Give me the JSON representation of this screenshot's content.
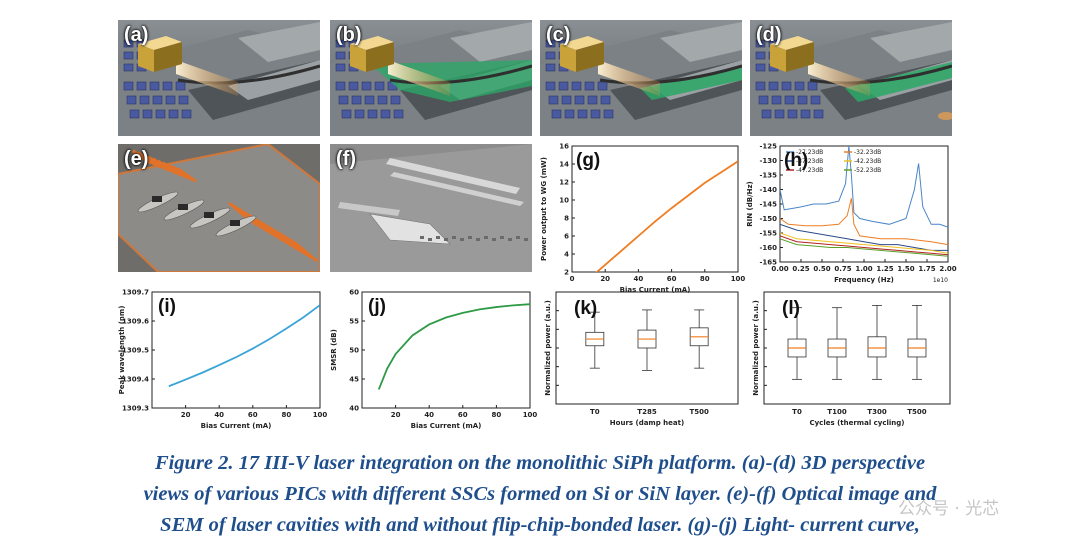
{
  "panels": {
    "a": {
      "label": "(a)"
    },
    "b": {
      "label": "(b)"
    },
    "c": {
      "label": "(c)"
    },
    "d": {
      "label": "(d)"
    },
    "e": {
      "label": "(e)"
    },
    "f": {
      "label": "(f)"
    }
  },
  "chart_data": [
    {
      "id": "g",
      "label": "(g)",
      "type": "line",
      "xlabel": "Bias Current (mA)",
      "ylabel": "Power output to WG (mW)",
      "xlim": [
        0,
        100
      ],
      "ylim": [
        2,
        16
      ],
      "xticks": [
        0,
        20,
        40,
        60,
        80,
        100
      ],
      "yticks": [
        2,
        4,
        6,
        8,
        10,
        12,
        14,
        16
      ],
      "series": [
        {
          "color": "#ef7d22",
          "x": [
            10,
            20,
            30,
            40,
            50,
            60,
            70,
            80,
            90,
            100
          ],
          "y": [
            1.2,
            2.8,
            4.4,
            6.0,
            7.6,
            9.1,
            10.5,
            11.9,
            13.1,
            14.3
          ]
        }
      ]
    },
    {
      "id": "h",
      "label": "(h)",
      "type": "line",
      "xlabel": "Frequency (Hz)",
      "ylabel": "RIN (dB/Hz)",
      "xunit": "1e10",
      "xlim": [
        0,
        2.0
      ],
      "ylim": [
        -165,
        -125
      ],
      "xticks": [
        0.0,
        0.25,
        0.5,
        0.75,
        1.0,
        1.25,
        1.5,
        1.75,
        2.0
      ],
      "xticklabels": [
        "0.00",
        "0.25",
        "0.50",
        "0.75",
        "1.00",
        "1.25",
        "1.50",
        "1.75",
        "2.00"
      ],
      "yticks": [
        -125,
        -130,
        -135,
        -140,
        -145,
        -150,
        -155,
        -160,
        -165
      ],
      "legend": "top",
      "series": [
        {
          "name": "-27.23dB",
          "color": "#4a86c8",
          "x": [
            0.0,
            0.05,
            0.15,
            0.25,
            0.4,
            0.55,
            0.7,
            0.78,
            0.82,
            0.85,
            0.88,
            0.95,
            1.1,
            1.3,
            1.5,
            1.6,
            1.65,
            1.7,
            1.8,
            1.9,
            2.0
          ],
          "y": [
            -140,
            -147,
            -146.5,
            -146,
            -145,
            -145,
            -144,
            -138,
            -125,
            -135,
            -148,
            -150,
            -151,
            -152,
            -150,
            -140,
            -131,
            -146,
            -152,
            -152,
            -153
          ]
        },
        {
          "name": "-32.23dB",
          "color": "#ef7d22",
          "x": [
            0.0,
            0.1,
            0.3,
            0.5,
            0.7,
            0.8,
            0.85,
            0.88,
            0.95,
            1.2,
            1.5,
            1.8,
            2.0
          ],
          "y": [
            -150,
            -152,
            -152.5,
            -152.5,
            -152,
            -149,
            -143,
            -152,
            -156,
            -157,
            -157,
            -158,
            -159
          ]
        },
        {
          "name": "-37.23dB",
          "color": "#2b4a8a",
          "x": [
            0.0,
            0.2,
            0.4,
            0.6,
            0.8,
            1.0,
            1.2,
            1.4,
            1.6,
            1.8,
            2.0
          ],
          "y": [
            -152,
            -154,
            -155,
            -156,
            -157,
            -158,
            -159,
            -159,
            -160,
            -161,
            -161
          ]
        },
        {
          "name": "-42.23dB",
          "color": "#f0c020",
          "x": [
            0.0,
            0.2,
            0.4,
            0.6,
            0.8,
            1.0,
            1.2,
            1.4,
            1.6,
            1.8,
            2.0
          ],
          "y": [
            -155,
            -157,
            -157.5,
            -158,
            -158.5,
            -159,
            -159.5,
            -160,
            -160.5,
            -161,
            -162
          ]
        },
        {
          "name": "-47.23dB",
          "color": "#b22222",
          "x": [
            0.0,
            0.2,
            0.4,
            0.6,
            0.8,
            1.0,
            1.2,
            1.4,
            1.6,
            1.8,
            2.0
          ],
          "y": [
            -156,
            -158,
            -158.5,
            -159,
            -159.5,
            -160,
            -160.5,
            -161,
            -161.5,
            -162,
            -162.5
          ]
        },
        {
          "name": "-52.23dB",
          "color": "#5aa02c",
          "x": [
            0.0,
            0.2,
            0.4,
            0.6,
            0.8,
            1.0,
            1.2,
            1.4,
            1.6,
            1.8,
            2.0
          ],
          "y": [
            -157,
            -159,
            -159.5,
            -160,
            -160,
            -160.5,
            -161,
            -161.5,
            -162,
            -162.5,
            -163
          ]
        }
      ]
    },
    {
      "id": "i",
      "label": "(i)",
      "type": "line",
      "xlabel": "Bias Current (mA)",
      "ylabel": "Peak wavelength (nm)",
      "xlim": [
        0,
        100
      ],
      "ylim": [
        1309.3,
        1309.7
      ],
      "xticks": [
        20,
        40,
        60,
        80,
        100
      ],
      "yticks": [
        1309.3,
        1309.4,
        1309.5,
        1309.6,
        1309.7
      ],
      "series": [
        {
          "color": "#3aa3d8",
          "x": [
            10,
            20,
            30,
            40,
            50,
            60,
            70,
            80,
            90,
            100
          ],
          "y": [
            1309.375,
            1309.398,
            1309.422,
            1309.448,
            1309.475,
            1309.505,
            1309.538,
            1309.574,
            1309.612,
            1309.655
          ]
        }
      ]
    },
    {
      "id": "j",
      "label": "(j)",
      "type": "line",
      "xlabel": "Bias Current (mA)",
      "ylabel": "SMSR (dB)",
      "xlim": [
        0,
        100
      ],
      "ylim": [
        40,
        60
      ],
      "xticks": [
        20,
        40,
        60,
        80,
        100
      ],
      "yticks": [
        40,
        45,
        50,
        55,
        60
      ],
      "series": [
        {
          "color": "#2e9a45",
          "x": [
            10,
            15,
            20,
            30,
            40,
            50,
            60,
            70,
            80,
            90,
            100
          ],
          "y": [
            43.2,
            46.8,
            49.3,
            52.5,
            54.4,
            55.6,
            56.4,
            57.0,
            57.4,
            57.7,
            57.9
          ]
        }
      ]
    },
    {
      "id": "k",
      "label": "(k)",
      "type": "box",
      "xlabel": "Hours (damp heat)",
      "ylabel": "Normalized power (a.u.)",
      "categories": [
        "T0",
        "T285",
        "T500"
      ],
      "boxes": [
        {
          "whislo": 0.32,
          "q1": 0.52,
          "med": 0.58,
          "q3": 0.64,
          "whishi": 0.82
        },
        {
          "whislo": 0.3,
          "q1": 0.5,
          "med": 0.58,
          "q3": 0.66,
          "whishi": 0.84
        },
        {
          "whislo": 0.32,
          "q1": 0.52,
          "med": 0.6,
          "q3": 0.68,
          "whishi": 0.84
        }
      ]
    },
    {
      "id": "l",
      "label": "(l)",
      "type": "box",
      "xlabel": "Cycles (thermal cycling)",
      "ylabel": "Normalized power (a.u.)",
      "categories": [
        "T0",
        "T100",
        "T300",
        "T500"
      ],
      "boxes": [
        {
          "whislo": 0.22,
          "q1": 0.42,
          "med": 0.5,
          "q3": 0.58,
          "whishi": 0.86
        },
        {
          "whislo": 0.22,
          "q1": 0.42,
          "med": 0.5,
          "q3": 0.58,
          "whishi": 0.86
        },
        {
          "whislo": 0.22,
          "q1": 0.42,
          "med": 0.5,
          "q3": 0.6,
          "whishi": 0.88
        },
        {
          "whislo": 0.22,
          "q1": 0.42,
          "med": 0.5,
          "q3": 0.58,
          "whishi": 0.88
        }
      ]
    }
  ],
  "caption": {
    "line1": "Figure 2. 17 III-V laser integration on the monolithic SiPh platform. (a)-(d) 3D perspective",
    "line2": "views of various PICs with different SSCs formed on Si or SiN layer. (e)-(f) Optical image and",
    "line3": "SEM of laser cavities with and without flip-chip-bonded laser. (g)-(j) Light- current curve,"
  },
  "watermark": "公众号 · 光芯",
  "colors": {
    "caption": "#1f4e8c",
    "waveguide_green": "#2aa866",
    "beam": "#f2a24a"
  }
}
